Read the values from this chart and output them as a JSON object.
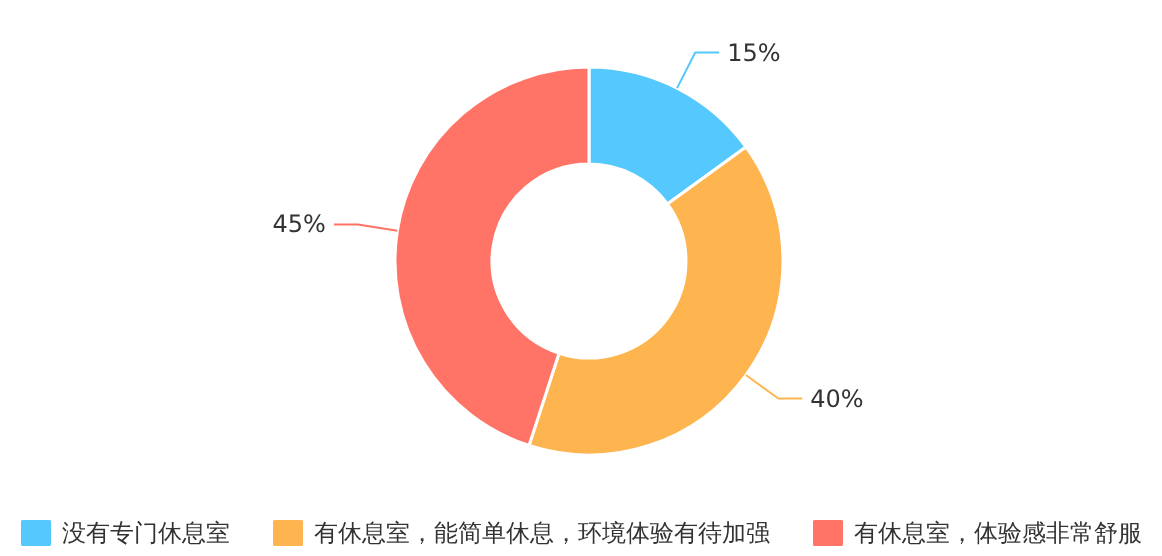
{
  "chart_data": {
    "type": "donut",
    "categories": [
      "没有专门休息室",
      "有休息室，能简单休息，环境体验有待加强",
      "有休息室，体验感非常舒服"
    ],
    "values": [
      15,
      40,
      45
    ],
    "colors": [
      "#55c8fd",
      "#ffb54f",
      "#ff7466"
    ],
    "value_labels": [
      "15%",
      "40%",
      "45%"
    ],
    "legend": "bottom"
  }
}
